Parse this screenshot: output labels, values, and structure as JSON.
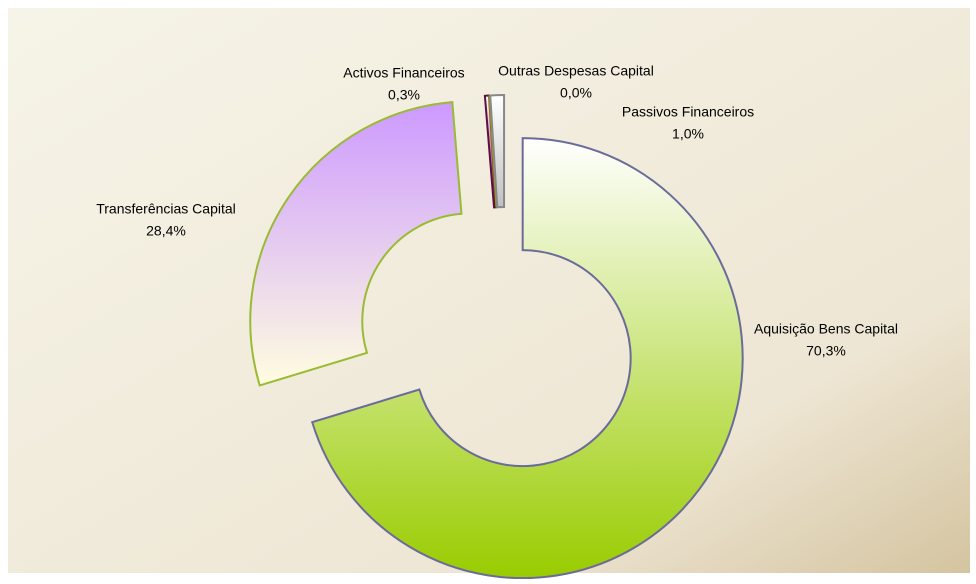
{
  "chart_data": {
    "type": "pie",
    "categories": [
      "Aquisição Bens Capital",
      "Transferências Capital",
      "Activos Financeiros",
      "Outras Despesas Capital",
      "Passivos Financeiros"
    ],
    "values": [
      70.3,
      28.4,
      0.3,
      0.0,
      1.0
    ],
    "value_labels": [
      "70,3%",
      "28,4%",
      "0,3%",
      "0,0%",
      "1,0%"
    ],
    "colors": [
      "#99cc00",
      "#cc99ff",
      "#800060",
      "#ffff00",
      "#c0c0c0"
    ]
  }
}
